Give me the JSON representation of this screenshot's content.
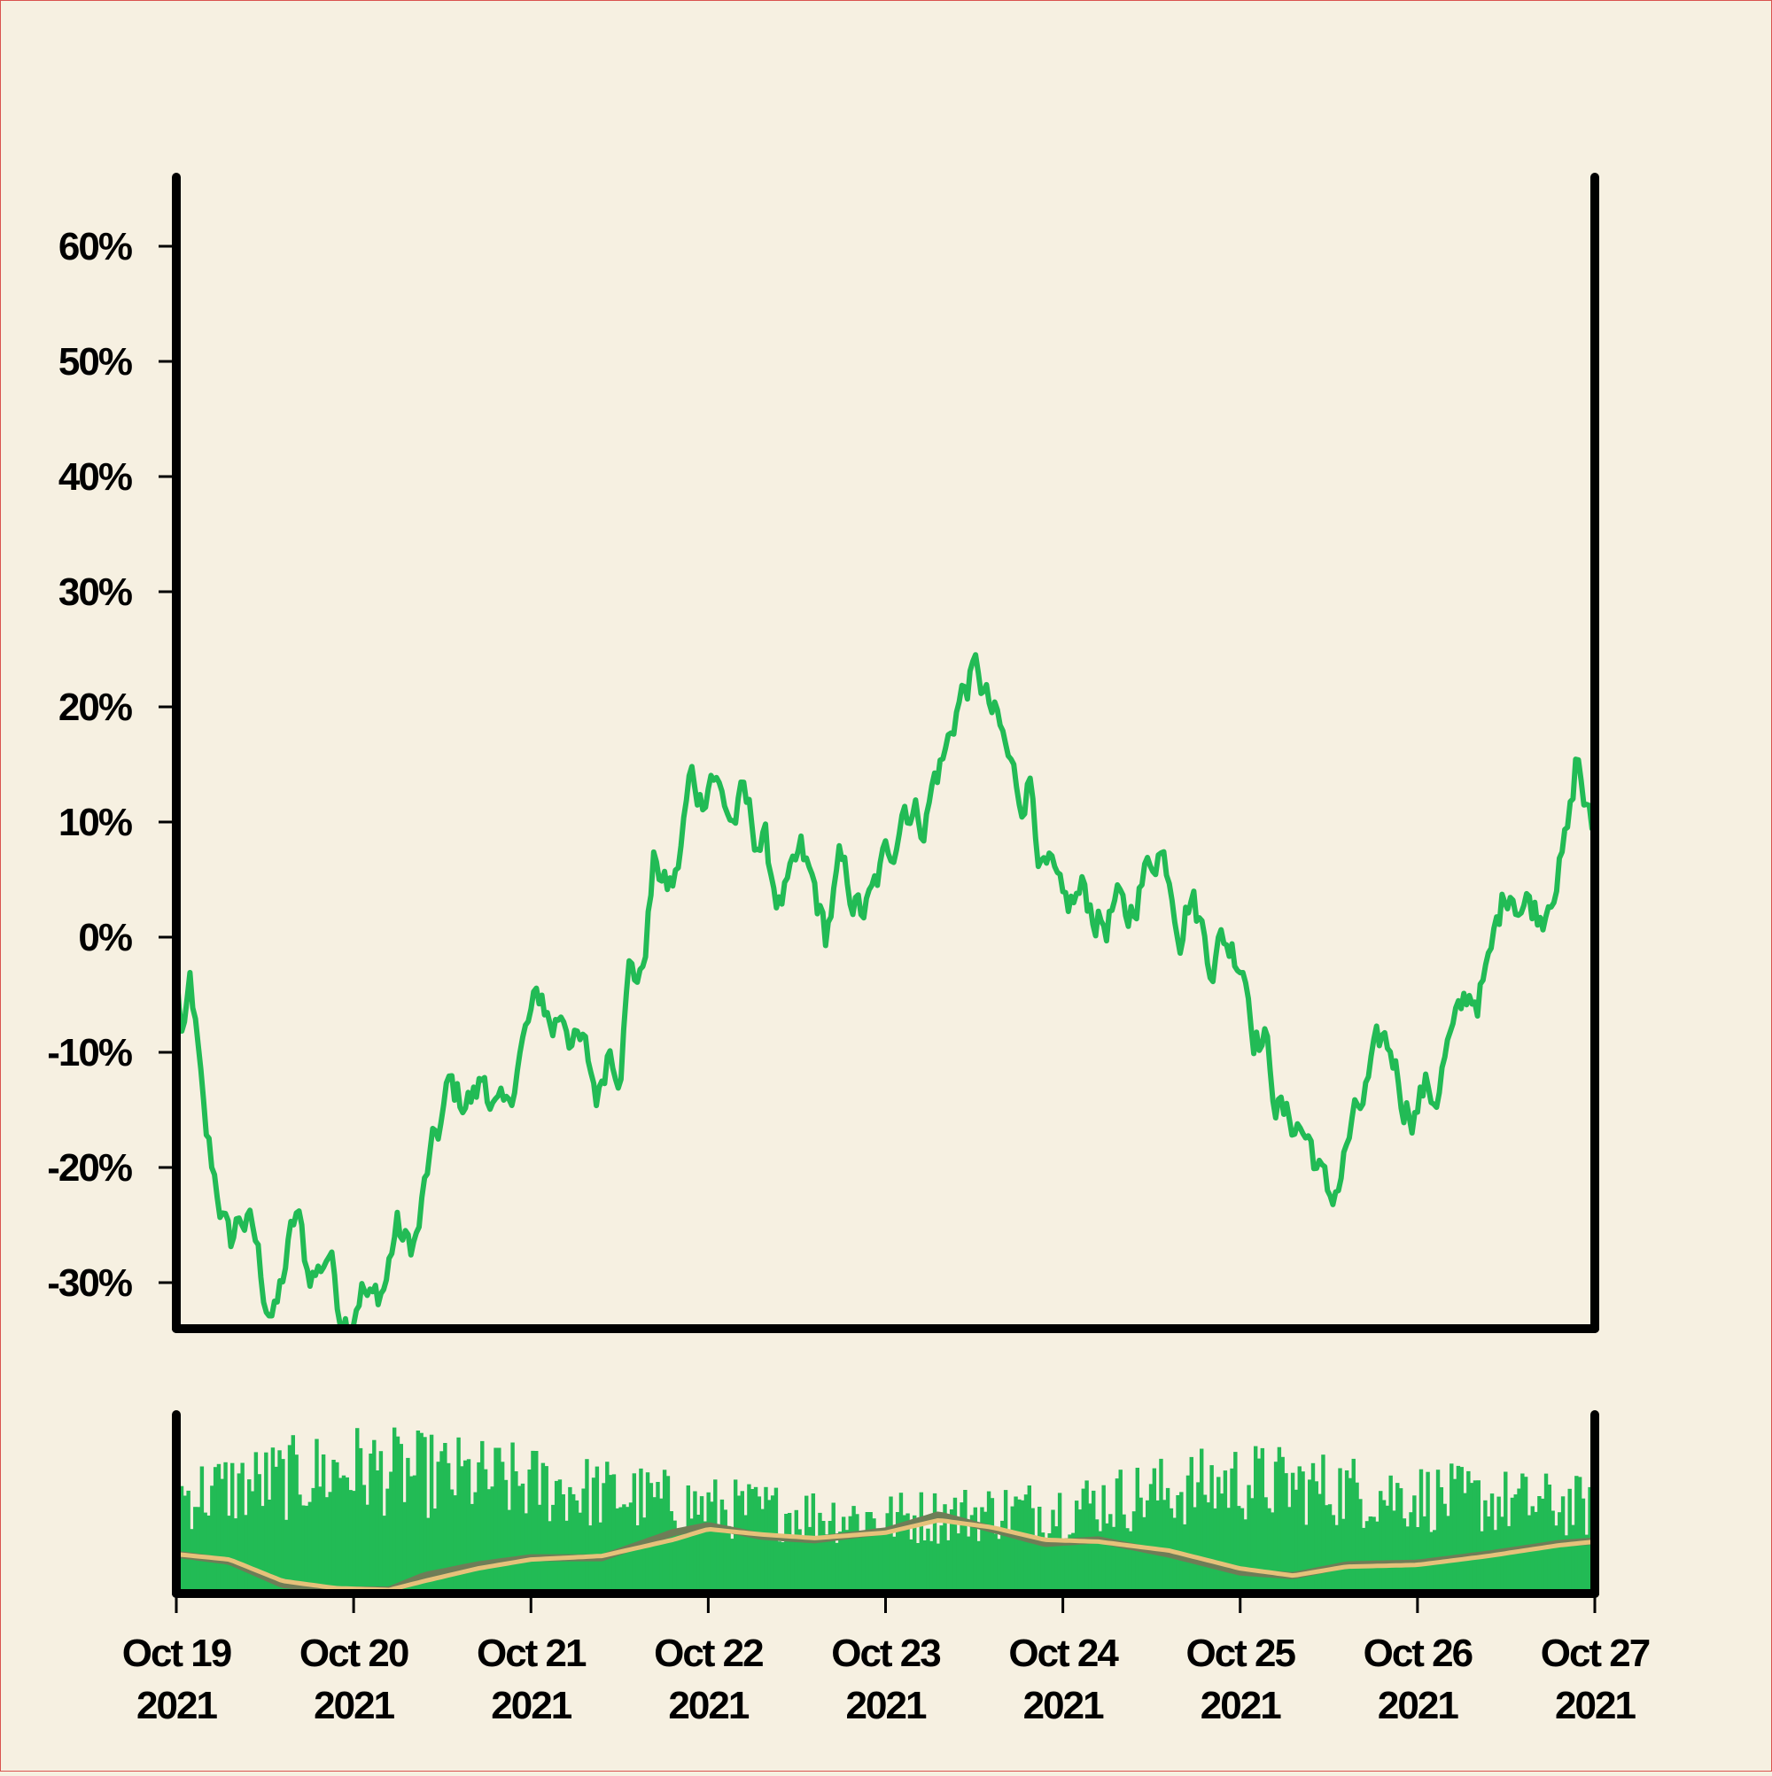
{
  "chart_data": [
    {
      "type": "line",
      "title": "",
      "xlabel": "",
      "ylabel": "",
      "y_unit": "%",
      "ylim": [
        -34,
        66
      ],
      "yticks": [
        -30,
        -20,
        -10,
        0,
        10,
        20,
        30,
        40,
        50,
        60
      ],
      "ytick_labels": [
        "-30%",
        "-20%",
        "-10%",
        "0%",
        "10%",
        "20%",
        "30%",
        "40%",
        "50%",
        "60%"
      ],
      "xlim": [
        "2021-10-19",
        "2021-10-27"
      ],
      "grid": false,
      "series": [
        {
          "color": "#22bb55",
          "x_start": "2021-10-19",
          "x_end": "2021-10-27",
          "knots": [
            [
              0.0,
              -3
            ],
            [
              0.04,
              -10
            ],
            [
              0.08,
              -4
            ],
            [
              0.12,
              -10
            ],
            [
              0.16,
              -17
            ],
            [
              0.22,
              -21
            ],
            [
              0.3,
              -27
            ],
            [
              0.36,
              -24
            ],
            [
              0.44,
              -26
            ],
            [
              0.5,
              -31
            ],
            [
              0.56,
              -33
            ],
            [
              0.62,
              -28
            ],
            [
              0.68,
              -24
            ],
            [
              0.74,
              -29
            ],
            [
              0.8,
              -29
            ],
            [
              0.86,
              -27
            ],
            [
              0.92,
              -32
            ],
            [
              0.98,
              -33
            ],
            [
              1.04,
              -30
            ],
            [
              1.1,
              -32
            ],
            [
              1.18,
              -30
            ],
            [
              1.24,
              -25
            ],
            [
              1.3,
              -27
            ],
            [
              1.36,
              -26
            ],
            [
              1.42,
              -20
            ],
            [
              1.48,
              -17
            ],
            [
              1.54,
              -13
            ],
            [
              1.6,
              -14
            ],
            [
              1.68,
              -14
            ],
            [
              1.74,
              -12
            ],
            [
              1.8,
              -15
            ],
            [
              1.86,
              -16
            ],
            [
              1.92,
              -11
            ],
            [
              2.0,
              -7
            ],
            [
              2.06,
              -5
            ],
            [
              2.12,
              -8
            ],
            [
              2.18,
              -6
            ],
            [
              2.24,
              -9
            ],
            [
              2.3,
              -10
            ],
            [
              2.38,
              -14
            ],
            [
              2.44,
              -9
            ],
            [
              2.5,
              -11
            ],
            [
              2.56,
              -2
            ],
            [
              2.62,
              -4
            ],
            [
              2.7,
              7
            ],
            [
              2.76,
              4
            ],
            [
              2.82,
              5
            ],
            [
              2.9,
              14
            ],
            [
              2.96,
              12
            ],
            [
              3.02,
              15
            ],
            [
              3.08,
              12
            ],
            [
              3.14,
              10
            ],
            [
              3.2,
              12
            ],
            [
              3.26,
              9
            ],
            [
              3.32,
              8
            ],
            [
              3.4,
              3
            ],
            [
              3.46,
              4
            ],
            [
              3.52,
              7
            ],
            [
              3.6,
              4
            ],
            [
              3.66,
              0
            ],
            [
              3.74,
              6
            ],
            [
              3.8,
              4
            ],
            [
              3.86,
              2
            ],
            [
              3.92,
              3
            ],
            [
              3.98,
              6
            ],
            [
              4.04,
              8
            ],
            [
              4.1,
              12
            ],
            [
              4.16,
              11
            ],
            [
              4.22,
              10
            ],
            [
              4.28,
              14
            ],
            [
              4.34,
              16
            ],
            [
              4.4,
              20
            ],
            [
              4.46,
              22
            ],
            [
              4.52,
              23
            ],
            [
              4.58,
              20
            ],
            [
              4.64,
              18
            ],
            [
              4.7,
              15
            ],
            [
              4.76,
              12
            ],
            [
              4.82,
              14
            ],
            [
              4.88,
              6
            ],
            [
              4.94,
              5
            ],
            [
              5.0,
              2
            ],
            [
              5.06,
              3
            ],
            [
              5.12,
              4
            ],
            [
              5.18,
              2
            ],
            [
              5.24,
              1
            ],
            [
              5.3,
              3
            ],
            [
              5.36,
              1
            ],
            [
              5.42,
              4
            ],
            [
              5.48,
              6
            ],
            [
              5.54,
              8
            ],
            [
              5.6,
              6
            ],
            [
              5.66,
              1
            ],
            [
              5.72,
              4
            ],
            [
              5.78,
              1
            ],
            [
              5.84,
              -2
            ],
            [
              5.9,
              0
            ],
            [
              5.96,
              -1
            ],
            [
              6.02,
              -2
            ],
            [
              6.08,
              -8
            ],
            [
              6.14,
              -9
            ],
            [
              6.2,
              -14
            ],
            [
              6.26,
              -16
            ],
            [
              6.32,
              -16
            ],
            [
              6.4,
              -18
            ],
            [
              6.46,
              -21
            ],
            [
              6.5,
              -23
            ],
            [
              6.56,
              -21
            ],
            [
              6.62,
              -17
            ],
            [
              6.68,
              -15
            ],
            [
              6.74,
              -12
            ],
            [
              6.8,
              -9
            ],
            [
              6.86,
              -10
            ],
            [
              6.92,
              -14
            ],
            [
              6.98,
              -15
            ],
            [
              7.04,
              -13
            ],
            [
              7.1,
              -14
            ],
            [
              7.16,
              -10
            ],
            [
              7.22,
              -8
            ],
            [
              7.28,
              -5
            ],
            [
              7.34,
              -5
            ],
            [
              7.4,
              -3
            ],
            [
              7.46,
              2
            ],
            [
              7.52,
              5
            ],
            [
              7.58,
              3
            ],
            [
              7.64,
              3
            ],
            [
              7.7,
              2
            ],
            [
              7.76,
              5
            ],
            [
              7.82,
              7
            ],
            [
              7.86,
              10
            ],
            [
              7.9,
              16
            ],
            [
              7.94,
              12
            ],
            [
              7.98,
              9
            ],
            [
              8.02,
              10
            ],
            [
              8.06,
              12
            ],
            [
              8.1,
              14
            ],
            [
              8.14,
              11
            ],
            [
              8.18,
              14
            ],
            [
              8.22,
              12
            ],
            [
              8.26,
              9
            ],
            [
              8.3,
              9
            ],
            [
              8.34,
              13
            ],
            [
              8.38,
              16
            ],
            [
              8.42,
              13
            ],
            [
              8.46,
              14
            ],
            [
              8.5,
              11
            ],
            [
              8.54,
              10
            ],
            [
              8.58,
              7
            ]
          ]
        }
      ]
    },
    {
      "type": "bar",
      "title": "",
      "xlabel": "",
      "ylabel": "",
      "xlim": [
        "2021-10-19",
        "2021-10-27"
      ],
      "xtick_labels": [
        [
          "Oct 19",
          "2021"
        ],
        [
          "Oct 20",
          "2021"
        ],
        [
          "Oct 21",
          "2021"
        ],
        [
          "Oct 22",
          "2021"
        ],
        [
          "Oct 23",
          "2021"
        ],
        [
          "Oct 24",
          "2021"
        ],
        [
          "Oct 25",
          "2021"
        ],
        [
          "Oct 26",
          "2021"
        ],
        [
          "Oct 27",
          "2021"
        ]
      ],
      "series": [
        {
          "color": "#22bb55",
          "x_start": "2021-10-19",
          "x_end": "2021-10-27",
          "typical_height": [
            [
              0.0,
              0.62
            ],
            [
              1.0,
              0.8
            ],
            [
              2.0,
              0.7
            ],
            [
              3.0,
              0.55
            ],
            [
              4.0,
              0.48
            ],
            [
              5.0,
              0.55
            ],
            [
              6.0,
              0.72
            ],
            [
              7.0,
              0.62
            ],
            [
              8.0,
              0.55
            ]
          ],
          "count": 420
        },
        {
          "color": "#6e7d57",
          "x_start": "2021-10-19",
          "x_end": "2021-10-27",
          "knots": [
            [
              0.0,
              0.22
            ],
            [
              0.3,
              0.18
            ],
            [
              0.6,
              0.05
            ],
            [
              0.9,
              0.02
            ],
            [
              1.2,
              0.02
            ],
            [
              1.4,
              0.1
            ],
            [
              1.7,
              0.16
            ],
            [
              2.0,
              0.2
            ],
            [
              2.4,
              0.2
            ],
            [
              2.8,
              0.34
            ],
            [
              3.0,
              0.38
            ],
            [
              3.3,
              0.32
            ],
            [
              3.6,
              0.3
            ],
            [
              4.0,
              0.35
            ],
            [
              4.3,
              0.44
            ],
            [
              4.6,
              0.36
            ],
            [
              4.9,
              0.28
            ],
            [
              5.2,
              0.3
            ],
            [
              5.6,
              0.22
            ],
            [
              6.0,
              0.12
            ],
            [
              6.3,
              0.1
            ],
            [
              6.6,
              0.16
            ],
            [
              7.0,
              0.17
            ],
            [
              7.4,
              0.22
            ],
            [
              7.8,
              0.28
            ],
            [
              8.1,
              0.3
            ],
            [
              8.3,
              0.34
            ],
            [
              8.6,
              0.34
            ]
          ]
        },
        {
          "color": "#e6c27a",
          "x_start": "2021-10-19",
          "x_end": "2021-10-27",
          "knots": [
            [
              0.0,
              0.22
            ],
            [
              0.3,
              0.19
            ],
            [
              0.6,
              0.07
            ],
            [
              0.9,
              0.03
            ],
            [
              1.2,
              0.02
            ],
            [
              1.4,
              0.07
            ],
            [
              1.7,
              0.14
            ],
            [
              2.0,
              0.19
            ],
            [
              2.4,
              0.21
            ],
            [
              2.8,
              0.3
            ],
            [
              3.0,
              0.36
            ],
            [
              3.3,
              0.33
            ],
            [
              3.6,
              0.31
            ],
            [
              4.0,
              0.34
            ],
            [
              4.3,
              0.41
            ],
            [
              4.6,
              0.37
            ],
            [
              4.9,
              0.3
            ],
            [
              5.2,
              0.29
            ],
            [
              5.6,
              0.24
            ],
            [
              6.0,
              0.14
            ],
            [
              6.3,
              0.1
            ],
            [
              6.6,
              0.15
            ],
            [
              7.0,
              0.16
            ],
            [
              7.4,
              0.21
            ],
            [
              7.8,
              0.27
            ],
            [
              8.1,
              0.3
            ],
            [
              8.3,
              0.33
            ],
            [
              8.6,
              0.33
            ]
          ]
        }
      ]
    }
  ]
}
